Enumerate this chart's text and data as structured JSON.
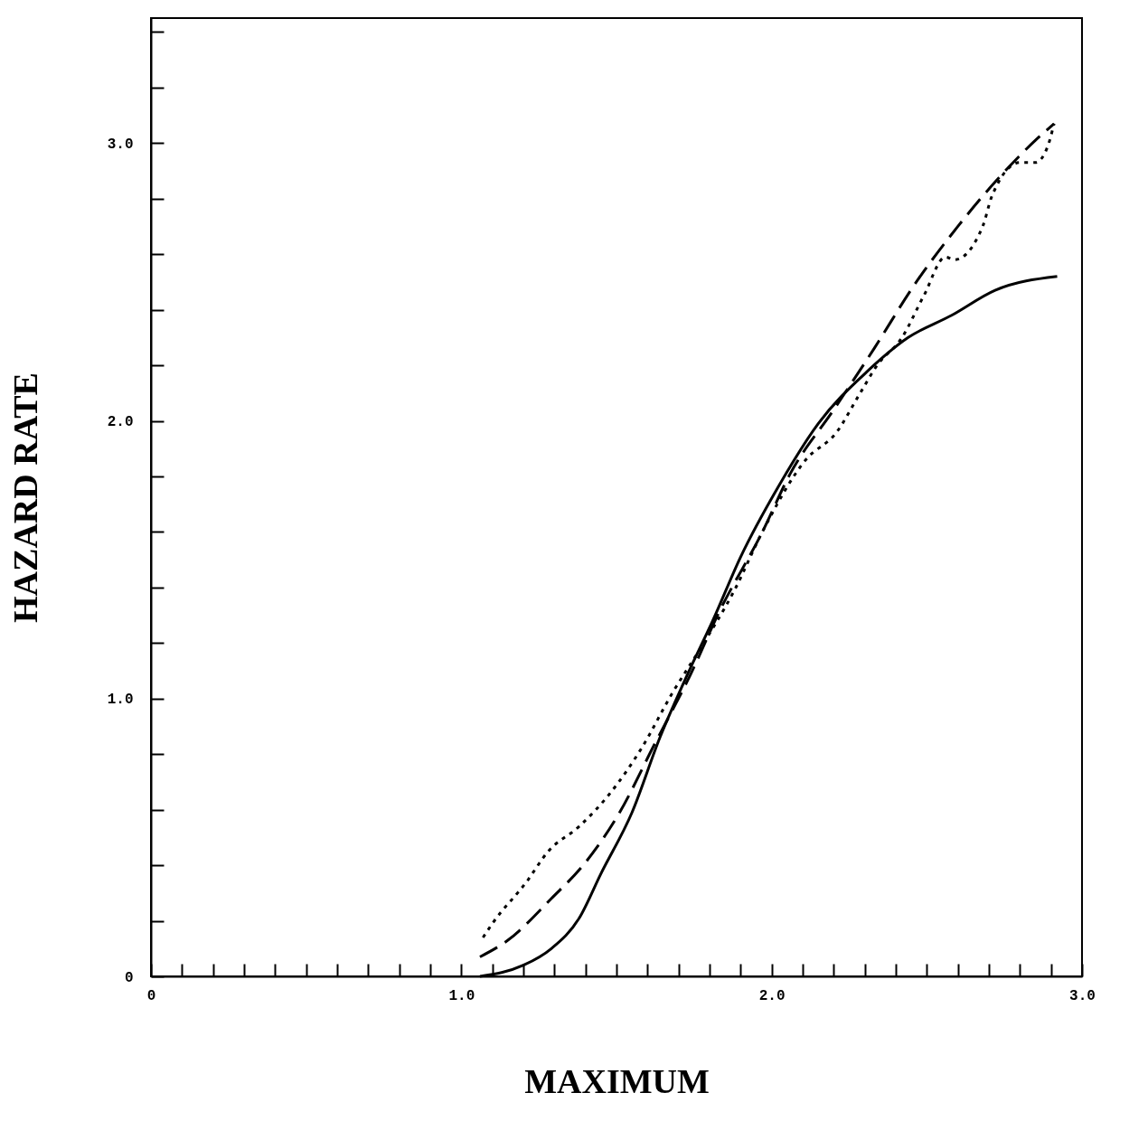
{
  "chart_data": {
    "type": "line",
    "xlabel": "MAXIMUM",
    "ylabel": "HAZARD RATE",
    "xlim": [
      0,
      3
    ],
    "ylim": [
      0,
      3.45
    ],
    "xticks": [
      {
        "value": 0,
        "label": "0"
      },
      {
        "value": 0.1,
        "label": null
      },
      {
        "value": 0.2,
        "label": null
      },
      {
        "value": 0.3,
        "label": null
      },
      {
        "value": 0.4,
        "label": null
      },
      {
        "value": 0.5,
        "label": null
      },
      {
        "value": 0.6,
        "label": null
      },
      {
        "value": 0.7,
        "label": null
      },
      {
        "value": 0.8,
        "label": null
      },
      {
        "value": 0.9,
        "label": null
      },
      {
        "value": 1,
        "label": "1.0"
      },
      {
        "value": 1.1,
        "label": null
      },
      {
        "value": 1.2,
        "label": null
      },
      {
        "value": 1.3,
        "label": null
      },
      {
        "value": 1.4,
        "label": null
      },
      {
        "value": 1.5,
        "label": null
      },
      {
        "value": 1.6,
        "label": null
      },
      {
        "value": 1.7,
        "label": null
      },
      {
        "value": 1.8,
        "label": null
      },
      {
        "value": 1.9,
        "label": null
      },
      {
        "value": 2,
        "label": "2.0"
      },
      {
        "value": 2.1,
        "label": null
      },
      {
        "value": 2.2,
        "label": null
      },
      {
        "value": 2.3,
        "label": null
      },
      {
        "value": 2.4,
        "label": null
      },
      {
        "value": 2.5,
        "label": null
      },
      {
        "value": 2.6,
        "label": null
      },
      {
        "value": 2.7,
        "label": null
      },
      {
        "value": 2.8,
        "label": null
      },
      {
        "value": 2.9,
        "label": null
      },
      {
        "value": 3,
        "label": "3.0"
      }
    ],
    "yticks": [
      {
        "value": 0,
        "label": "0"
      },
      {
        "value": 0.2,
        "label": null
      },
      {
        "value": 0.4,
        "label": null
      },
      {
        "value": 0.6,
        "label": null
      },
      {
        "value": 0.8,
        "label": null
      },
      {
        "value": 1,
        "label": "1.0"
      },
      {
        "value": 1.2,
        "label": null
      },
      {
        "value": 1.4,
        "label": null
      },
      {
        "value": 1.6,
        "label": null
      },
      {
        "value": 1.8,
        "label": null
      },
      {
        "value": 2,
        "label": "2.0"
      },
      {
        "value": 2.2,
        "label": null
      },
      {
        "value": 2.4,
        "label": null
      },
      {
        "value": 2.6,
        "label": null
      },
      {
        "value": 2.8,
        "label": null
      },
      {
        "value": 3,
        "label": "3.0"
      },
      {
        "value": 3.2,
        "label": null
      },
      {
        "value": 3.4,
        "label": null
      }
    ],
    "grid": false,
    "marker": "none",
    "series": [
      {
        "color": "#000000",
        "line_style": "solid",
        "x": [
          1.06,
          1.2,
          1.29,
          1.38,
          1.45,
          1.55,
          1.64,
          1.73,
          1.81,
          1.9,
          2.02,
          2.15,
          2.31,
          2.44,
          2.58,
          2.72,
          2.92
        ],
        "values": [
          0,
          0.04,
          0.1,
          0.21,
          0.37,
          0.59,
          0.86,
          1.09,
          1.28,
          1.51,
          1.76,
          1.99,
          2.18,
          2.3,
          2.38,
          2.47,
          2.52
        ]
      },
      {
        "color": "#000000",
        "line_style": "dashed",
        "x": [
          1.06,
          1.15,
          1.29,
          1.4,
          1.51,
          1.62,
          1.74,
          1.83,
          1.97,
          2.06,
          2.2,
          2.33,
          2.46,
          2.6,
          2.72,
          2.85,
          2.91
        ],
        "values": [
          0.07,
          0.13,
          0.28,
          0.41,
          0.59,
          0.83,
          1.09,
          1.31,
          1.6,
          1.81,
          2.04,
          2.26,
          2.49,
          2.7,
          2.86,
          3.01,
          3.07
        ]
      },
      {
        "color": "#000000",
        "line_style": "dotted",
        "x": [
          1.07,
          1.1,
          1.21,
          1.28,
          1.38,
          1.48,
          1.58,
          1.68,
          1.77,
          1.88,
          1.97,
          2.11,
          2.21,
          2.28,
          2.34,
          2.42,
          2.49,
          2.56,
          2.59,
          2.68,
          2.71,
          2.8,
          2.85,
          2.89,
          2.91
        ],
        "values": [
          0.14,
          0.19,
          0.34,
          0.45,
          0.54,
          0.66,
          0.82,
          1.02,
          1.18,
          1.39,
          1.6,
          1.86,
          1.96,
          2.09,
          2.2,
          2.3,
          2.45,
          2.59,
          2.58,
          2.7,
          2.81,
          2.93,
          2.93,
          2.99,
          3.07
        ]
      }
    ]
  }
}
